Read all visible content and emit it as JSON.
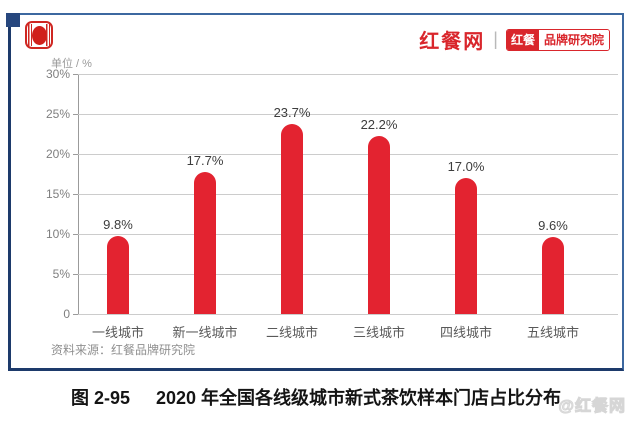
{
  "header": {
    "site_name": "红餐网",
    "divider": "|",
    "badge": {
      "left": "红餐",
      "right": "品牌研究院"
    }
  },
  "chart": {
    "unit_label": "单位 / %",
    "source_note": "资料来源：红餐品牌研究院"
  },
  "chart_data": {
    "type": "bar",
    "title": "2020 年全国各线级城市新式茶饮样本门店占比分布",
    "ylabel": "单位 / %",
    "xlabel": "",
    "categories": [
      "一线城市",
      "新一线城市",
      "二线城市",
      "三线城市",
      "四线城市",
      "五线城市"
    ],
    "values": [
      9.8,
      17.7,
      23.7,
      22.2,
      17.0,
      9.6
    ],
    "value_labels": [
      "9.8%",
      "17.7%",
      "23.7%",
      "22.2%",
      "17.0%",
      "9.6%"
    ],
    "ylim": [
      0,
      30
    ],
    "y_ticks": [
      {
        "label": "30%",
        "value": 30
      },
      {
        "label": "25%",
        "value": 25
      },
      {
        "label": "20%",
        "value": 20
      },
      {
        "label": "15%",
        "value": 15
      },
      {
        "label": "10%",
        "value": 10
      },
      {
        "label": "5%",
        "value": 5
      },
      {
        "label": "0",
        "value": 0
      }
    ],
    "grid": true,
    "legend_position": "none",
    "bar_color": "#e32330"
  },
  "caption": {
    "figure_no": "图 2-95",
    "text": "2020 年全国各线级城市新式茶饮样本门店占比分布"
  },
  "watermark": "@红餐网",
  "colors": {
    "bar": "#e32330",
    "brand_red": "#d9262c",
    "frame_navy": "#1d3a6b",
    "frame_blue": "#3c68a0",
    "gridline": "#cccccc"
  }
}
